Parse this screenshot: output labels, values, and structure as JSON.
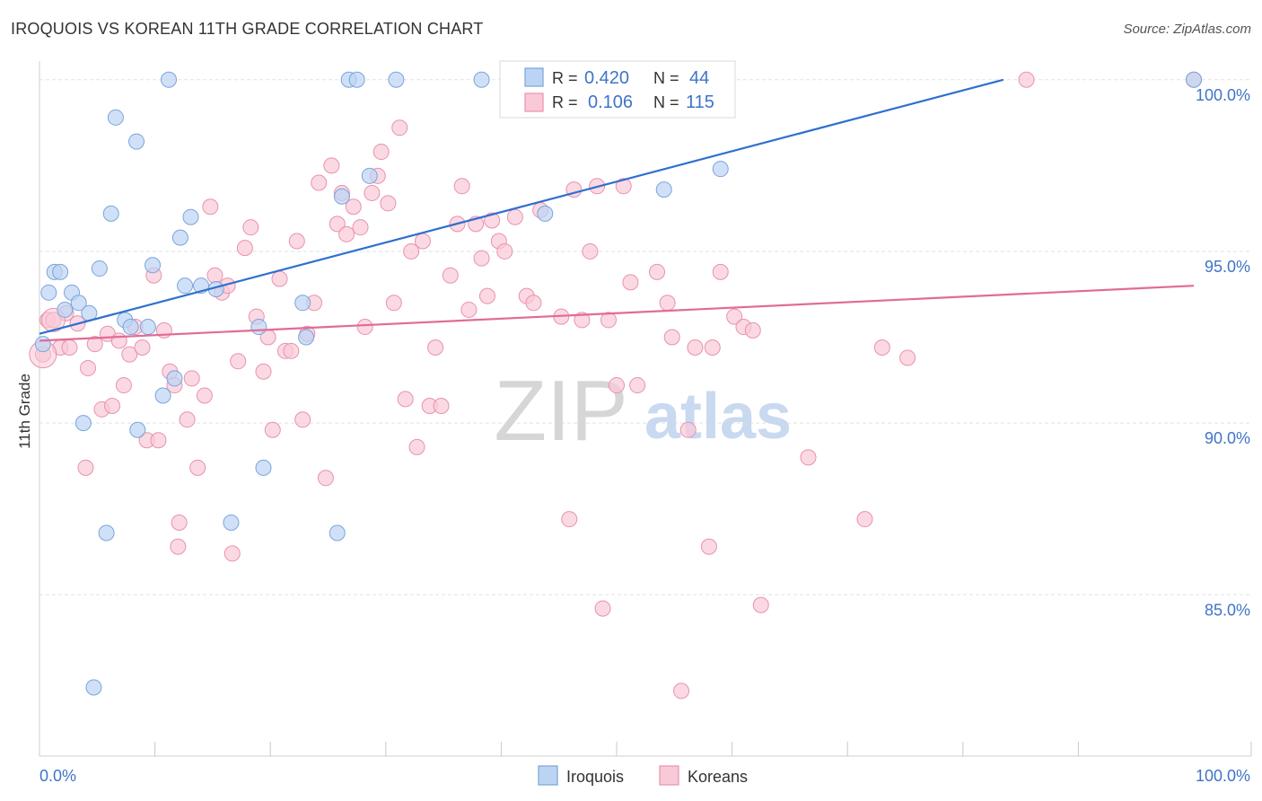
{
  "header": {
    "title": "IROQUOIS VS KOREAN 11TH GRADE CORRELATION CHART",
    "source": "Source: ZipAtlas.com"
  },
  "watermark": {
    "zip": "ZIP",
    "atlas": "atlas"
  },
  "colors": {
    "iroquois_fill": "#bcd4f3",
    "iroquois_stroke": "#7aa4dc",
    "iroquois_line": "#2f6fcf",
    "koreans_fill": "#f9c9d7",
    "koreans_stroke": "#e892ad",
    "koreans_line": "#e26b96",
    "tick_label": "#3f74c8",
    "grid": "#e2e2e2"
  },
  "legend_top": {
    "rows": [
      {
        "r_label": "R =",
        "r_value": "0.420",
        "n_label": "N =",
        "n_value": "44"
      },
      {
        "r_label": "R =",
        "r_value": "0.106",
        "n_label": "N =",
        "n_value": "115"
      }
    ]
  },
  "chart_data": {
    "type": "scatter",
    "title": "IROQUOIS VS KOREAN 11TH GRADE CORRELATION CHART",
    "xlabel": "",
    "ylabel": "11th Grade",
    "xlim": [
      0,
      100
    ],
    "ylim": [
      80.3,
      100.7
    ],
    "x_tick_labels": [
      "0.0%",
      "100.0%"
    ],
    "y_ticks": [
      85,
      90,
      95,
      100
    ],
    "y_tick_labels": [
      "85.0%",
      "90.0%",
      "95.0%",
      "100.0%"
    ],
    "grid": true,
    "legend_position": "bottom-center",
    "series": [
      {
        "name": "Iroquois",
        "r": 0.42,
        "n": 44,
        "trend": {
          "x": [
            0,
            83.5
          ],
          "y": [
            92.6,
            100.0
          ]
        },
        "points": [
          [
            0.3,
            92.3
          ],
          [
            0.8,
            93.8
          ],
          [
            1.3,
            94.4
          ],
          [
            1.8,
            94.4
          ],
          [
            2.2,
            93.3
          ],
          [
            2.8,
            93.8
          ],
          [
            3.4,
            93.5
          ],
          [
            3.8,
            90.0
          ],
          [
            4.3,
            93.2
          ],
          [
            5.2,
            94.5
          ],
          [
            5.8,
            86.8
          ],
          [
            6.2,
            96.1
          ],
          [
            6.6,
            98.9
          ],
          [
            7.4,
            93.0
          ],
          [
            7.9,
            92.8
          ],
          [
            8.4,
            98.2
          ],
          [
            8.5,
            89.8
          ],
          [
            9.4,
            92.8
          ],
          [
            9.8,
            94.6
          ],
          [
            10.7,
            90.8
          ],
          [
            11.2,
            100.0
          ],
          [
            11.7,
            91.3
          ],
          [
            12.2,
            95.4
          ],
          [
            12.6,
            94.0
          ],
          [
            13.1,
            96.0
          ],
          [
            14.0,
            94.0
          ],
          [
            15.3,
            93.9
          ],
          [
            16.6,
            87.1
          ],
          [
            19.0,
            92.8
          ],
          [
            19.4,
            88.7
          ],
          [
            22.8,
            93.5
          ],
          [
            23.1,
            92.5
          ],
          [
            25.8,
            86.8
          ],
          [
            26.2,
            96.6
          ],
          [
            26.8,
            100.0
          ],
          [
            27.5,
            100.0
          ],
          [
            28.6,
            97.2
          ],
          [
            30.9,
            100.0
          ],
          [
            38.3,
            100.0
          ],
          [
            43.8,
            96.1
          ],
          [
            54.1,
            96.8
          ],
          [
            59.0,
            97.4
          ],
          [
            100.0,
            100.0
          ],
          [
            4.7,
            82.3
          ]
        ]
      },
      {
        "name": "Koreans",
        "r": 0.106,
        "n": 115,
        "trend": {
          "x": [
            0,
            100
          ],
          "y": [
            92.4,
            94.0
          ]
        },
        "points": [
          [
            0.3,
            92.0
          ],
          [
            0.7,
            93.0
          ],
          [
            1.2,
            93.0
          ],
          [
            1.8,
            92.2
          ],
          [
            2.3,
            93.2
          ],
          [
            2.6,
            92.2
          ],
          [
            3.3,
            92.9
          ],
          [
            4.0,
            88.7
          ],
          [
            4.2,
            91.6
          ],
          [
            4.8,
            92.3
          ],
          [
            5.4,
            90.4
          ],
          [
            5.9,
            92.6
          ],
          [
            6.3,
            90.5
          ],
          [
            6.9,
            92.4
          ],
          [
            7.3,
            91.1
          ],
          [
            7.8,
            92.0
          ],
          [
            8.3,
            92.8
          ],
          [
            8.9,
            92.2
          ],
          [
            9.3,
            89.5
          ],
          [
            9.9,
            94.3
          ],
          [
            10.3,
            89.5
          ],
          [
            10.8,
            92.7
          ],
          [
            11.3,
            91.5
          ],
          [
            11.7,
            91.1
          ],
          [
            12.1,
            87.1
          ],
          [
            12.0,
            86.4
          ],
          [
            12.8,
            90.1
          ],
          [
            13.2,
            91.3
          ],
          [
            13.7,
            88.7
          ],
          [
            14.3,
            90.8
          ],
          [
            14.8,
            96.3
          ],
          [
            15.2,
            94.3
          ],
          [
            15.8,
            93.8
          ],
          [
            16.3,
            94.0
          ],
          [
            16.7,
            86.2
          ],
          [
            17.2,
            91.8
          ],
          [
            17.8,
            95.1
          ],
          [
            18.3,
            95.7
          ],
          [
            18.8,
            93.1
          ],
          [
            19.4,
            91.5
          ],
          [
            19.8,
            92.5
          ],
          [
            20.2,
            89.8
          ],
          [
            20.8,
            94.2
          ],
          [
            21.3,
            92.1
          ],
          [
            21.8,
            92.1
          ],
          [
            22.3,
            95.3
          ],
          [
            22.8,
            90.1
          ],
          [
            23.2,
            92.6
          ],
          [
            23.8,
            93.5
          ],
          [
            24.2,
            97.0
          ],
          [
            24.8,
            88.4
          ],
          [
            25.3,
            97.5
          ],
          [
            25.8,
            95.8
          ],
          [
            26.2,
            96.7
          ],
          [
            26.6,
            95.5
          ],
          [
            27.2,
            96.3
          ],
          [
            27.8,
            95.7
          ],
          [
            28.2,
            92.8
          ],
          [
            28.8,
            96.7
          ],
          [
            29.3,
            97.2
          ],
          [
            29.6,
            97.9
          ],
          [
            30.2,
            96.4
          ],
          [
            30.7,
            93.5
          ],
          [
            31.2,
            98.6
          ],
          [
            31.7,
            90.7
          ],
          [
            32.2,
            95.0
          ],
          [
            32.7,
            89.3
          ],
          [
            33.2,
            95.3
          ],
          [
            33.8,
            90.5
          ],
          [
            34.3,
            92.2
          ],
          [
            34.8,
            90.5
          ],
          [
            35.6,
            94.3
          ],
          [
            36.2,
            95.8
          ],
          [
            36.6,
            96.9
          ],
          [
            37.2,
            93.3
          ],
          [
            37.8,
            95.8
          ],
          [
            38.3,
            94.8
          ],
          [
            38.8,
            93.7
          ],
          [
            39.2,
            95.9
          ],
          [
            39.8,
            95.3
          ],
          [
            40.3,
            95.0
          ],
          [
            41.2,
            96.0
          ],
          [
            42.2,
            93.7
          ],
          [
            42.8,
            93.5
          ],
          [
            43.4,
            96.2
          ],
          [
            45.2,
            93.1
          ],
          [
            45.9,
            87.2
          ],
          [
            46.3,
            96.8
          ],
          [
            47.0,
            93.0
          ],
          [
            47.7,
            95.0
          ],
          [
            48.3,
            96.9
          ],
          [
            48.8,
            84.6
          ],
          [
            49.3,
            93.0
          ],
          [
            50.0,
            91.1
          ],
          [
            50.6,
            96.9
          ],
          [
            51.2,
            94.1
          ],
          [
            51.8,
            91.1
          ],
          [
            53.5,
            94.4
          ],
          [
            54.4,
            93.5
          ],
          [
            54.8,
            92.5
          ],
          [
            55.6,
            82.2
          ],
          [
            56.2,
            89.8
          ],
          [
            56.8,
            92.2
          ],
          [
            58.0,
            86.4
          ],
          [
            58.3,
            92.2
          ],
          [
            59.0,
            94.4
          ],
          [
            60.2,
            93.1
          ],
          [
            61.0,
            92.8
          ],
          [
            61.8,
            92.7
          ],
          [
            62.5,
            84.7
          ],
          [
            66.6,
            89.0
          ],
          [
            71.5,
            87.2
          ],
          [
            73.0,
            92.2
          ],
          [
            75.2,
            91.9
          ],
          [
            85.5,
            100.0
          ],
          [
            100.0,
            100.0
          ],
          [
            40.6,
            100.0
          ]
        ]
      }
    ]
  },
  "legend_bottom": {
    "items": [
      "Iroquois",
      "Koreans"
    ]
  }
}
